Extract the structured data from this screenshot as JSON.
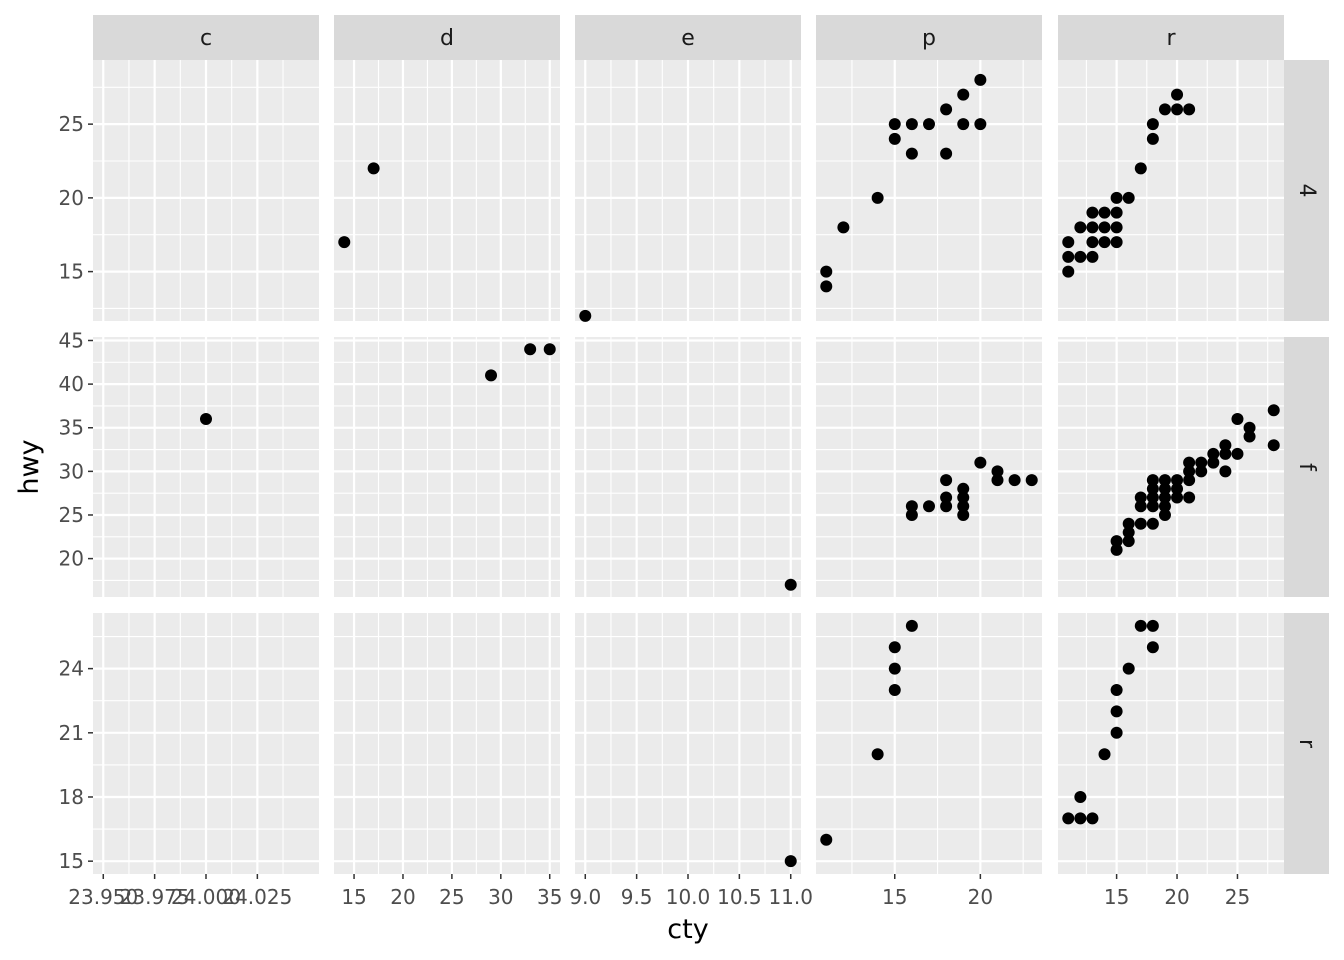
{
  "chart_data": {
    "type": "scatter",
    "xlabel": "cty",
    "ylabel": "hwy",
    "facet_cols": [
      "c",
      "d",
      "e",
      "p",
      "r"
    ],
    "facet_rows": [
      "4",
      "f",
      "r"
    ],
    "colors": {
      "panel": "#ebebeb",
      "strip": "#d9d9d9",
      "grid": "#ffffff",
      "point": "#000000"
    },
    "x_axes": [
      {
        "col": "c",
        "ticks": [
          23.95,
          23.975,
          24.0,
          24.025
        ],
        "tick_labels": [
          "23.950",
          "23.975",
          "24.000",
          "24.025"
        ],
        "range": [
          23.945,
          24.055
        ]
      },
      {
        "col": "d",
        "ticks": [
          15,
          20,
          25,
          30,
          35
        ],
        "tick_labels": [
          "15",
          "20",
          "25",
          "30",
          "35"
        ],
        "range": [
          12.95,
          36.05
        ]
      },
      {
        "col": "e",
        "ticks": [
          9.0,
          9.5,
          10.0,
          10.5,
          11.0
        ],
        "tick_labels": [
          "9.0",
          "9.5",
          "10.0",
          "10.5",
          "11.0"
        ],
        "range": [
          8.9,
          11.1
        ]
      },
      {
        "col": "p",
        "ticks": [
          15,
          20
        ],
        "tick_labels": [
          "15",
          "20"
        ],
        "range": [
          10.4,
          23.6
        ]
      },
      {
        "col": "r",
        "ticks": [
          15,
          20,
          25
        ],
        "tick_labels": [
          "15",
          "20",
          "25"
        ],
        "range": [
          10.15,
          28.85
        ]
      }
    ],
    "y_axes": [
      {
        "row": "4",
        "ticks": [
          15,
          20,
          25
        ],
        "tick_labels": [
          "15",
          "20",
          "25"
        ],
        "range": [
          11.65,
          29.35
        ]
      },
      {
        "row": "f",
        "ticks": [
          20,
          25,
          30,
          35,
          40,
          45
        ],
        "tick_labels": [
          "20",
          "25",
          "30",
          "35",
          "40",
          "45"
        ],
        "range": [
          15.6,
          45.4
        ]
      },
      {
        "row": "r",
        "ticks": [
          15,
          18,
          21,
          24
        ],
        "tick_labels": [
          "15",
          "18",
          "21",
          "24"
        ],
        "range": [
          14.4,
          26.6
        ]
      }
    ],
    "panels": [
      {
        "row": "4",
        "col": "d",
        "points": [
          [
            14,
            17
          ],
          [
            17,
            22
          ]
        ]
      },
      {
        "row": "4",
        "col": "e",
        "points": [
          [
            9,
            12
          ]
        ]
      },
      {
        "row": "4",
        "col": "p",
        "points": [
          [
            11,
            14
          ],
          [
            11,
            15
          ],
          [
            12,
            18
          ],
          [
            14,
            20
          ],
          [
            15,
            24
          ],
          [
            15,
            25
          ],
          [
            16,
            23
          ],
          [
            16,
            25
          ],
          [
            17,
            25
          ],
          [
            18,
            23
          ],
          [
            18,
            26
          ],
          [
            19,
            25
          ],
          [
            19,
            27
          ],
          [
            20,
            25
          ],
          [
            20,
            28
          ]
        ]
      },
      {
        "row": "4",
        "col": "r",
        "points": [
          [
            11,
            15
          ],
          [
            11,
            16
          ],
          [
            11,
            17
          ],
          [
            12,
            16
          ],
          [
            12,
            18
          ],
          [
            13,
            16
          ],
          [
            13,
            17
          ],
          [
            13,
            18
          ],
          [
            13,
            19
          ],
          [
            14,
            17
          ],
          [
            14,
            18
          ],
          [
            14,
            19
          ],
          [
            15,
            17
          ],
          [
            15,
            18
          ],
          [
            15,
            19
          ],
          [
            15,
            20
          ],
          [
            16,
            20
          ],
          [
            17,
            22
          ],
          [
            18,
            24
          ],
          [
            18,
            25
          ],
          [
            19,
            26
          ],
          [
            20,
            26
          ],
          [
            20,
            27
          ],
          [
            21,
            26
          ]
        ]
      },
      {
        "row": "f",
        "col": "c",
        "points": [
          [
            24,
            36
          ]
        ]
      },
      {
        "row": "f",
        "col": "d",
        "points": [
          [
            29,
            41
          ],
          [
            33,
            44
          ],
          [
            35,
            44
          ]
        ]
      },
      {
        "row": "f",
        "col": "e",
        "points": [
          [
            11,
            17
          ]
        ]
      },
      {
        "row": "f",
        "col": "p",
        "points": [
          [
            16,
            25
          ],
          [
            16,
            26
          ],
          [
            17,
            26
          ],
          [
            18,
            26
          ],
          [
            18,
            27
          ],
          [
            18,
            29
          ],
          [
            19,
            25
          ],
          [
            19,
            26
          ],
          [
            19,
            27
          ],
          [
            19,
            28
          ],
          [
            20,
            31
          ],
          [
            21,
            29
          ],
          [
            21,
            30
          ],
          [
            22,
            29
          ],
          [
            23,
            29
          ]
        ]
      },
      {
        "row": "f",
        "col": "r",
        "points": [
          [
            15,
            21
          ],
          [
            15,
            22
          ],
          [
            16,
            22
          ],
          [
            16,
            23
          ],
          [
            16,
            24
          ],
          [
            17,
            24
          ],
          [
            17,
            26
          ],
          [
            17,
            27
          ],
          [
            18,
            24
          ],
          [
            18,
            26
          ],
          [
            18,
            27
          ],
          [
            18,
            28
          ],
          [
            18,
            29
          ],
          [
            19,
            25
          ],
          [
            19,
            26
          ],
          [
            19,
            27
          ],
          [
            19,
            28
          ],
          [
            19,
            29
          ],
          [
            20,
            27
          ],
          [
            20,
            28
          ],
          [
            20,
            29
          ],
          [
            21,
            27
          ],
          [
            21,
            29
          ],
          [
            21,
            30
          ],
          [
            21,
            31
          ],
          [
            22,
            30
          ],
          [
            22,
            31
          ],
          [
            23,
            31
          ],
          [
            23,
            32
          ],
          [
            24,
            30
          ],
          [
            24,
            32
          ],
          [
            24,
            33
          ],
          [
            25,
            32
          ],
          [
            25,
            36
          ],
          [
            26,
            34
          ],
          [
            26,
            35
          ],
          [
            28,
            33
          ],
          [
            28,
            37
          ]
        ]
      },
      {
        "row": "r",
        "col": "e",
        "points": [
          [
            11,
            15
          ]
        ]
      },
      {
        "row": "r",
        "col": "p",
        "points": [
          [
            11,
            16
          ],
          [
            14,
            20
          ],
          [
            15,
            23
          ],
          [
            15,
            24
          ],
          [
            15,
            25
          ],
          [
            16,
            26
          ]
        ]
      },
      {
        "row": "r",
        "col": "r",
        "points": [
          [
            11,
            17
          ],
          [
            12,
            17
          ],
          [
            12,
            18
          ],
          [
            13,
            17
          ],
          [
            14,
            20
          ],
          [
            15,
            21
          ],
          [
            15,
            22
          ],
          [
            15,
            23
          ],
          [
            16,
            24
          ],
          [
            17,
            26
          ],
          [
            18,
            25
          ],
          [
            18,
            26
          ]
        ]
      }
    ]
  }
}
